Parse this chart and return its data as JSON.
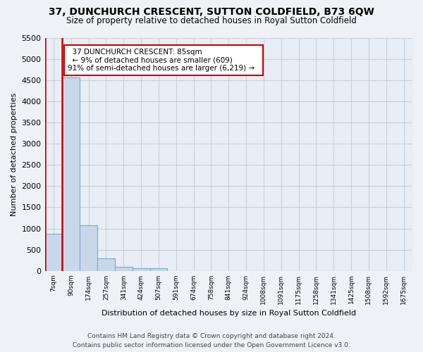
{
  "title": "37, DUNCHURCH CRESCENT, SUTTON COLDFIELD, B73 6QW",
  "subtitle": "Size of property relative to detached houses in Royal Sutton Coldfield",
  "xlabel": "Distribution of detached houses by size in Royal Sutton Coldfield",
  "ylabel": "Number of detached properties",
  "bar_labels": [
    "7sqm",
    "90sqm",
    "174sqm",
    "257sqm",
    "341sqm",
    "424sqm",
    "507sqm",
    "591sqm",
    "674sqm",
    "758sqm",
    "841sqm",
    "924sqm",
    "1008sqm",
    "1091sqm",
    "1175sqm",
    "1258sqm",
    "1341sqm",
    "1425sqm",
    "1508sqm",
    "1592sqm",
    "1675sqm"
  ],
  "bar_values": [
    880,
    4570,
    1070,
    300,
    100,
    60,
    55,
    0,
    0,
    0,
    0,
    0,
    0,
    0,
    0,
    0,
    0,
    0,
    0,
    0,
    0
  ],
  "bar_color": "#c8d8ea",
  "bar_edge_color": "#7aaac8",
  "highlight_bar_color": "#cc0000",
  "annotation_title": "37 DUNCHURCH CRESCENT: 85sqm",
  "annotation_line1": "← 9% of detached houses are smaller (609)",
  "annotation_line2": "91% of semi-detached houses are larger (6,219) →",
  "annotation_box_color": "#ffffff",
  "annotation_box_edge_color": "#cc0000",
  "ylim": [
    0,
    5500
  ],
  "yticks": [
    0,
    500,
    1000,
    1500,
    2000,
    2500,
    3000,
    3500,
    4000,
    4500,
    5000,
    5500
  ],
  "footer_line1": "Contains HM Land Registry data © Crown copyright and database right 2024.",
  "footer_line2": "Contains public sector information licensed under the Open Government Licence v3.0.",
  "background_color": "#eef2f7",
  "grid_color": "#c8d0db",
  "plot_bg_color": "#e8eef5"
}
